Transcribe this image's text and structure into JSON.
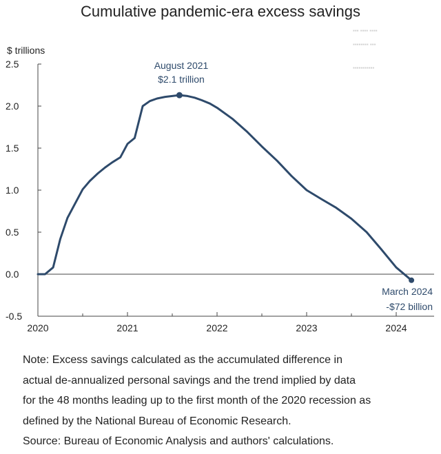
{
  "chart_data": {
    "type": "line",
    "title": "Cumulative pandemic-era excess savings",
    "ylabel": "$ trillions",
    "xlabel": "",
    "ylim": [
      -0.5,
      2.5
    ],
    "xlim": [
      2020.0,
      2024.4
    ],
    "yticks": [
      -0.5,
      0.0,
      0.5,
      1.0,
      1.5,
      2.0,
      2.5
    ],
    "ytick_labels": [
      "-0.5",
      "0.0",
      "0.5",
      "1.0",
      "1.5",
      "2.0",
      "2.5"
    ],
    "xticks": [
      2020,
      2021,
      2022,
      2023,
      2024
    ],
    "xtick_labels": [
      "2020",
      "2021",
      "2022",
      "2023",
      "2024"
    ],
    "grid": false,
    "zero_line": true,
    "line_color": "#2e4a6b",
    "series": [
      {
        "name": "",
        "x": [
          2020.08,
          2020.17,
          2020.25,
          2020.33,
          2020.42,
          2020.5,
          2020.58,
          2020.67,
          2020.75,
          2020.83,
          2020.92,
          2021.0,
          2021.08,
          2021.17,
          2021.25,
          2021.33,
          2021.42,
          2021.5,
          2021.58,
          2021.67,
          2021.75,
          2021.83,
          2021.92,
          2022.0,
          2022.17,
          2022.33,
          2022.5,
          2022.67,
          2022.83,
          2023.0,
          2023.17,
          2023.33,
          2023.5,
          2023.67,
          2023.83,
          2024.0,
          2024.17
        ],
        "values": [
          0.0,
          0.08,
          0.42,
          0.67,
          0.85,
          1.01,
          1.11,
          1.2,
          1.27,
          1.33,
          1.39,
          1.55,
          1.62,
          2.0,
          2.06,
          2.09,
          2.11,
          2.12,
          2.13,
          2.12,
          2.1,
          2.07,
          2.03,
          1.98,
          1.85,
          1.7,
          1.52,
          1.35,
          1.17,
          1.0,
          0.89,
          0.79,
          0.66,
          0.5,
          0.3,
          0.08,
          -0.072
        ]
      }
    ],
    "annotations": [
      {
        "line1": "August 2021",
        "line2": "$2.1 trillion",
        "x": 2021.58,
        "y": 2.13
      },
      {
        "line1": "March 2024",
        "line2": "-$72 billion",
        "x": 2024.17,
        "y": -0.072
      }
    ]
  },
  "note_lines": [
    "Note: Excess savings calculated as the accumulated difference in",
    "actual de-annualized personal savings and the trend implied by data",
    "for the 48 months leading up to the first month of the 2020 recession as",
    "defined by the National Bureau of Economic Research."
  ],
  "source": "Source: Bureau of Economic Analysis and authors' calculations."
}
